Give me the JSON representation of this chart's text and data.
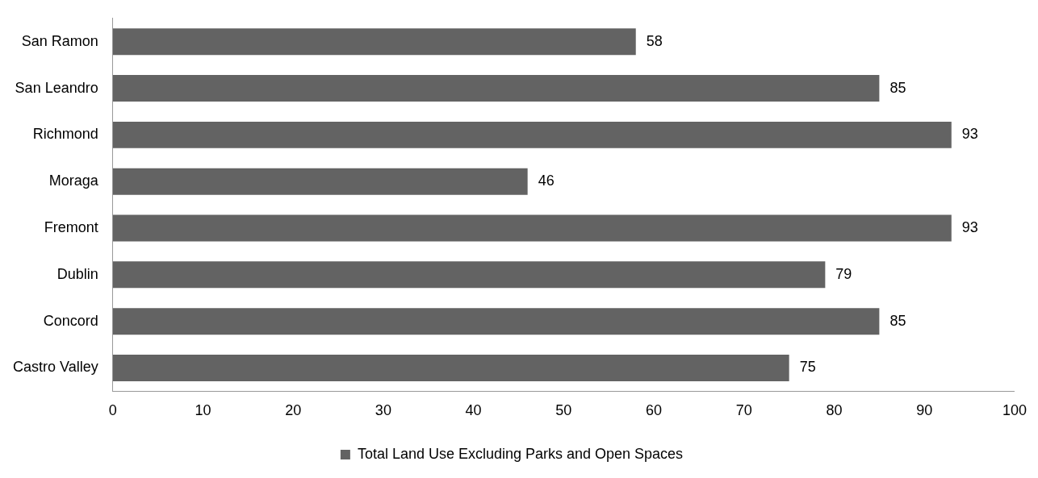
{
  "chart_data": {
    "type": "bar",
    "orientation": "horizontal",
    "categories": [
      "San Ramon",
      "San Leandro",
      "Richmond",
      "Moraga",
      "Fremont",
      "Dublin",
      "Concord",
      "Castro Valley"
    ],
    "series": [
      {
        "name": "Total Land Use Excluding Parks and Open Spaces",
        "color": "#636363",
        "values": [
          58,
          85,
          93,
          46,
          93,
          79,
          85,
          75
        ]
      }
    ],
    "xlim": [
      0,
      100
    ],
    "xticks": [
      0,
      10,
      20,
      30,
      40,
      50,
      60,
      70,
      80,
      90,
      100
    ],
    "data_labels": true,
    "grid": false,
    "legend": "bottom"
  }
}
